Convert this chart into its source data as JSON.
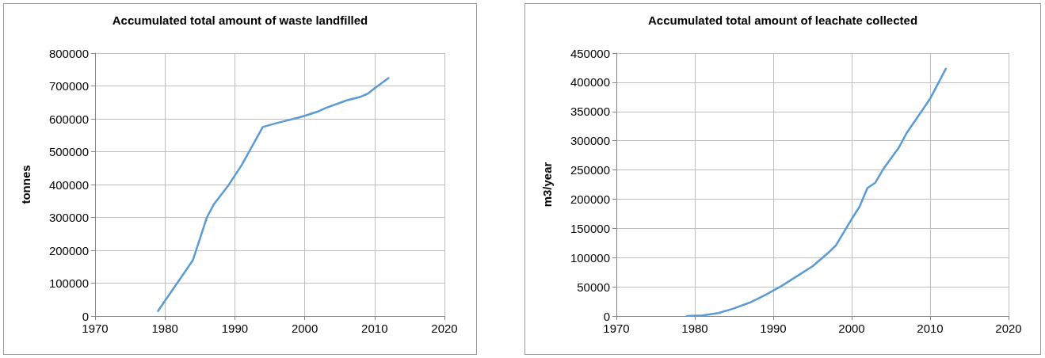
{
  "chart_data": [
    {
      "type": "line",
      "title": "Accumulated total amount of waste landfilled",
      "ylabel": "tonnes",
      "color": "#5b9bd5",
      "x": [
        1979,
        1984,
        1986,
        1987,
        1989,
        1991,
        1994,
        1996,
        1999,
        2000,
        2002,
        2003,
        2006,
        2008,
        2009,
        2010,
        2012
      ],
      "values": [
        15000,
        170000,
        300000,
        340000,
        395000,
        460000,
        575000,
        587000,
        603000,
        609000,
        623000,
        633000,
        656000,
        667000,
        676000,
        693000,
        724000
      ],
      "xlim": [
        1970,
        2020
      ],
      "xticks": [
        1970,
        1980,
        1990,
        2000,
        2010,
        2020
      ],
      "ylim": [
        0,
        800000
      ],
      "yticks": [
        0,
        100000,
        200000,
        300000,
        400000,
        500000,
        600000,
        700000,
        800000
      ],
      "grid": true,
      "marker": "none"
    },
    {
      "type": "line",
      "title": "Accumulated total amount of leachate collected",
      "ylabel": "m3/year",
      "color": "#5b9bd5",
      "x": [
        1979,
        1981,
        1983,
        1985,
        1987,
        1989,
        1991,
        1993,
        1995,
        1997,
        1998,
        2000,
        2001,
        2002,
        2003,
        2004,
        2006,
        2007,
        2009,
        2010,
        2012
      ],
      "values": [
        0,
        1000,
        5000,
        13000,
        23000,
        36000,
        51000,
        68000,
        85000,
        108000,
        121000,
        166000,
        187000,
        219000,
        228000,
        251000,
        288000,
        313000,
        352000,
        372000,
        423000
      ],
      "xlim": [
        1970,
        2020
      ],
      "xticks": [
        1970,
        1980,
        1990,
        2000,
        2010,
        2020
      ],
      "ylim": [
        0,
        450000
      ],
      "yticks": [
        0,
        50000,
        100000,
        150000,
        200000,
        250000,
        300000,
        350000,
        400000,
        450000
      ],
      "grid": true,
      "marker": "none"
    }
  ]
}
